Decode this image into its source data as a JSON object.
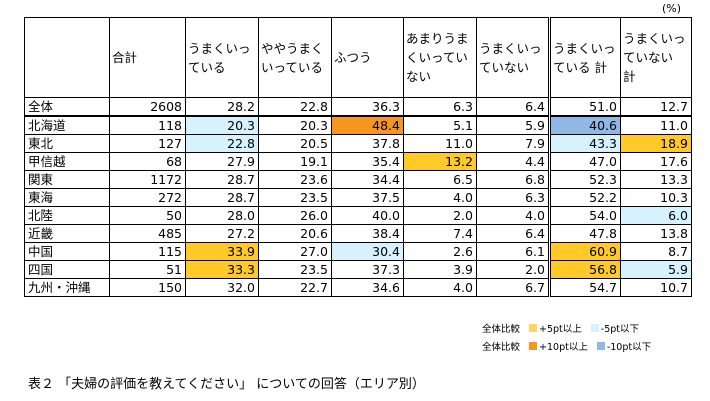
{
  "unit": "(%)",
  "headers": [
    "",
    "合計",
    "うまくいっている",
    "ややうまくいっている",
    "ふつう",
    "あまりうまくいっていない",
    "うまくいっていない",
    "うまくいっている 計",
    "うまくいっていない 計"
  ],
  "rows": [
    {
      "label": "全体",
      "cells": [
        "2608",
        "28.2",
        "22.8",
        "36.3",
        "6.3",
        "6.4",
        "51.0",
        "12.7"
      ],
      "hl": [
        "",
        "",
        "",
        "",
        "",
        "",
        "",
        ""
      ]
    },
    {
      "label": "北海道",
      "cells": [
        "118",
        "20.3",
        "20.3",
        "48.4",
        "5.1",
        "5.9",
        "40.6",
        "11.0"
      ],
      "hl": [
        "",
        "pale-blue",
        "",
        "orange",
        "",
        "",
        "blue",
        ""
      ]
    },
    {
      "label": "東北",
      "cells": [
        "127",
        "22.8",
        "20.5",
        "37.8",
        "11.0",
        "7.9",
        "43.3",
        "18.9"
      ],
      "hl": [
        "",
        "pale-blue",
        "",
        "",
        "",
        "",
        "pale-blue",
        "yellow"
      ]
    },
    {
      "label": "甲信越",
      "cells": [
        "68",
        "27.9",
        "19.1",
        "35.4",
        "13.2",
        "4.4",
        "47.0",
        "17.6"
      ],
      "hl": [
        "",
        "",
        "",
        "",
        "yellow",
        "",
        "",
        ""
      ]
    },
    {
      "label": "関東",
      "cells": [
        "1172",
        "28.7",
        "23.6",
        "34.4",
        "6.5",
        "6.8",
        "52.3",
        "13.3"
      ],
      "hl": [
        "",
        "",
        "",
        "",
        "",
        "",
        "",
        ""
      ]
    },
    {
      "label": "東海",
      "cells": [
        "272",
        "28.7",
        "23.5",
        "37.5",
        "4.0",
        "6.3",
        "52.2",
        "10.3"
      ],
      "hl": [
        "",
        "",
        "",
        "",
        "",
        "",
        "",
        ""
      ]
    },
    {
      "label": "北陸",
      "cells": [
        "50",
        "28.0",
        "26.0",
        "40.0",
        "2.0",
        "4.0",
        "54.0",
        "6.0"
      ],
      "hl": [
        "",
        "",
        "",
        "",
        "",
        "",
        "",
        "pale-blue"
      ]
    },
    {
      "label": "近畿",
      "cells": [
        "485",
        "27.2",
        "20.6",
        "38.4",
        "7.4",
        "6.4",
        "47.8",
        "13.8"
      ],
      "hl": [
        "",
        "",
        "",
        "",
        "",
        "",
        "",
        ""
      ]
    },
    {
      "label": "中国",
      "cells": [
        "115",
        "33.9",
        "27.0",
        "30.4",
        "2.6",
        "6.1",
        "60.9",
        "8.7"
      ],
      "hl": [
        "",
        "yellow",
        "",
        "pale-blue",
        "",
        "",
        "yellow",
        ""
      ]
    },
    {
      "label": "四国",
      "cells": [
        "51",
        "33.3",
        "23.5",
        "37.3",
        "3.9",
        "2.0",
        "56.8",
        "5.9"
      ],
      "hl": [
        "",
        "yellow",
        "",
        "",
        "",
        "",
        "yellow",
        "pale-blue"
      ]
    },
    {
      "label": "九州・沖縄",
      "cells": [
        "150",
        "32.0",
        "22.7",
        "34.6",
        "4.0",
        "6.7",
        "54.7",
        "10.7"
      ],
      "hl": [
        "",
        "",
        "",
        "",
        "",
        "",
        "",
        ""
      ]
    }
  ],
  "legend": [
    {
      "prefix": "全体比較",
      "items": [
        {
          "label": "+5pt以上",
          "color": "#ffd45f"
        },
        {
          "label": "-5pt以下",
          "color": "#d6f2fc"
        }
      ]
    },
    {
      "prefix": "全体比較",
      "items": [
        {
          "label": "+10pt以上",
          "color": "#f7961f"
        },
        {
          "label": "-10pt以下",
          "color": "#8fb8e5"
        }
      ]
    }
  ],
  "caption": "表２ 「夫婦の評価を教えてください」 についての回答（エリア別）"
}
